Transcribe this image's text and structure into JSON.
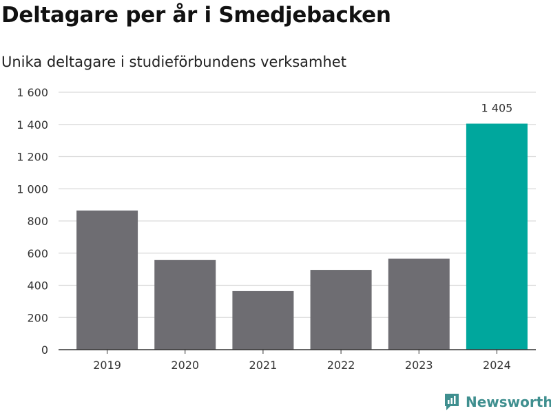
{
  "title": "Deltagare per år i Smedjebacken",
  "subtitle": "Unika deltagare i studieförbundens verksamhet",
  "brand": "Newsworthy",
  "colors": {
    "bar": "#6e6d72",
    "highlight": "#00a79d",
    "grid": "#d9d9d9",
    "axis": "#333333",
    "brand": "#3f8f8f"
  },
  "chart_data": {
    "type": "bar",
    "categories": [
      "2019",
      "2020",
      "2021",
      "2022",
      "2023",
      "2024"
    ],
    "values": [
      865,
      557,
      364,
      496,
      566,
      1405
    ],
    "highlight_index": 5,
    "data_labels": {
      "5": "1 405"
    },
    "ylim": [
      0,
      1600
    ],
    "yticks": [
      0,
      200,
      400,
      600,
      800,
      1000,
      1200,
      1400,
      1600
    ],
    "ytick_labels": [
      "0",
      "200",
      "400",
      "600",
      "800",
      "1 000",
      "1 200",
      "1 400",
      "1 600"
    ],
    "grid": true,
    "xlabel": "",
    "ylabel": ""
  }
}
